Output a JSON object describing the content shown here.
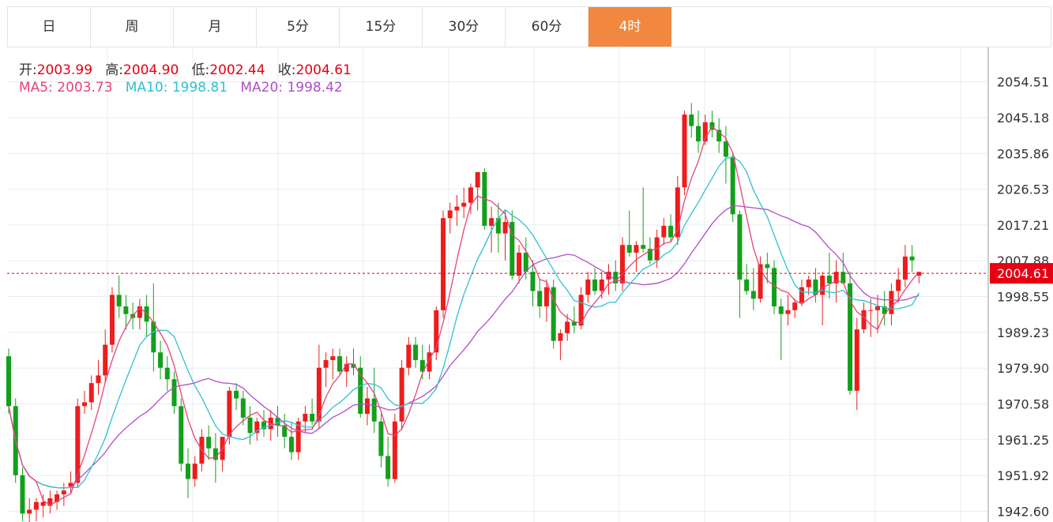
{
  "tabs": [
    {
      "label": "日",
      "active": false
    },
    {
      "label": "周",
      "active": false
    },
    {
      "label": "月",
      "active": false
    },
    {
      "label": "5分",
      "active": false
    },
    {
      "label": "15分",
      "active": false
    },
    {
      "label": "30分",
      "active": false
    },
    {
      "label": "60分",
      "active": false
    },
    {
      "label": "4时",
      "active": true
    }
  ],
  "ohlc_info": {
    "open_label": "开:",
    "open": "2003.99",
    "high_label": "高:",
    "high": "2004.90",
    "low_label": "低:",
    "low": "2002.44",
    "close_label": "收:",
    "close": "2004.61"
  },
  "ma_info": {
    "ma5_label": "MA5:",
    "ma5": "2003.73",
    "ma5_color": "#e8437a",
    "ma10_label": "MA10:",
    "ma10": "1998.81",
    "ma10_color": "#30c0d0",
    "ma20_label": "MA20:",
    "ma20": "1998.42",
    "ma20_color": "#b04fc6"
  },
  "colors": {
    "up": "#ee1c1c",
    "down": "#12a01a",
    "accent": "#f2873f"
  },
  "chart_data": {
    "type": "candlestick",
    "y_ticks": [
      "2054.51",
      "2045.18",
      "2035.86",
      "2026.53",
      "2017.21",
      "2007.88",
      "1998.55",
      "1989.23",
      "1979.90",
      "1970.58",
      "1961.25",
      "1951.92",
      "1942.60"
    ],
    "ylim": [
      1939.8,
      2063.5
    ],
    "last_price": "2004.61",
    "candles": [
      [
        1983,
        1985,
        1968,
        1970
      ],
      [
        1970,
        1972,
        1950,
        1952
      ],
      [
        1952,
        1954,
        1940,
        1942
      ],
      [
        1942,
        1946,
        1939,
        1943
      ],
      [
        1943,
        1946,
        1940,
        1945
      ],
      [
        1944,
        1947,
        1941,
        1945
      ],
      [
        1944,
        1948,
        1942,
        1946
      ],
      [
        1945,
        1948,
        1943,
        1947
      ],
      [
        1947,
        1950,
        1944,
        1948
      ],
      [
        1949,
        1953,
        1947,
        1950
      ],
      [
        1950,
        1972,
        1949,
        1970
      ],
      [
        1970,
        1974,
        1968,
        1971
      ],
      [
        1971,
        1978,
        1969,
        1976
      ],
      [
        1976,
        1982,
        1973,
        1978
      ],
      [
        1978,
        1990,
        1976,
        1986
      ],
      [
        1986,
        2001,
        1984,
        1999
      ],
      [
        1999,
        2004,
        1993,
        1996
      ],
      [
        1996,
        1999,
        1990,
        1994
      ],
      [
        1994,
        1997,
        1990,
        1993
      ],
      [
        1993,
        1998,
        1990,
        1996
      ],
      [
        1996,
        1999,
        1988,
        1992
      ],
      [
        1992,
        2002,
        1979,
        1984
      ],
      [
        1984,
        1987,
        1977,
        1980
      ],
      [
        1980,
        1983,
        1974,
        1977
      ],
      [
        1977,
        1979,
        1968,
        1970
      ],
      [
        1970,
        1972,
        1953,
        1955
      ],
      [
        1955,
        1959,
        1946,
        1951
      ],
      [
        1951,
        1957,
        1949,
        1955
      ],
      [
        1955,
        1964,
        1953,
        1962
      ],
      [
        1962,
        1965,
        1956,
        1959
      ],
      [
        1959,
        1963,
        1950,
        1956
      ],
      [
        1956,
        1962,
        1953,
        1962
      ],
      [
        1962,
        1975,
        1960,
        1974
      ],
      [
        1974,
        1976,
        1969,
        1972
      ],
      [
        1972,
        1974,
        1965,
        1967
      ],
      [
        1967,
        1970,
        1960,
        1963
      ],
      [
        1963,
        1967,
        1961,
        1966
      ],
      [
        1966,
        1969,
        1962,
        1964
      ],
      [
        1964,
        1969,
        1961,
        1967
      ],
      [
        1967,
        1970,
        1962,
        1965
      ],
      [
        1965,
        1968,
        1959,
        1962
      ],
      [
        1962,
        1966,
        1956,
        1958
      ],
      [
        1958,
        1967,
        1956,
        1966
      ],
      [
        1966,
        1970,
        1963,
        1968
      ],
      [
        1968,
        1972,
        1965,
        1966
      ],
      [
        1966,
        1986,
        1964,
        1980
      ],
      [
        1980,
        1984,
        1975,
        1982
      ],
      [
        1982,
        1985,
        1977,
        1983
      ],
      [
        1983,
        1985,
        1978,
        1979
      ],
      [
        1979,
        1983,
        1975,
        1981
      ],
      [
        1981,
        1985,
        1978,
        1980
      ],
      [
        1980,
        1983,
        1967,
        1968
      ],
      [
        1968,
        1975,
        1965,
        1972
      ],
      [
        1972,
        1980,
        1963,
        1966
      ],
      [
        1966,
        1968,
        1954,
        1957
      ],
      [
        1957,
        1962,
        1949,
        1951
      ],
      [
        1951,
        1968,
        1950,
        1966
      ],
      [
        1966,
        1982,
        1964,
        1980
      ],
      [
        1980,
        1988,
        1978,
        1986
      ],
      [
        1986,
        1988,
        1980,
        1982
      ],
      [
        1982,
        1986,
        1977,
        1979
      ],
      [
        1979,
        1986,
        1977,
        1984
      ],
      [
        1984,
        1996,
        1982,
        1995
      ],
      [
        1995,
        2021,
        1993,
        2019
      ],
      [
        2019,
        2023,
        2015,
        2021
      ],
      [
        2021,
        2025,
        2017,
        2022
      ],
      [
        2022,
        2027,
        2019,
        2023
      ],
      [
        2023,
        2028,
        2020,
        2027
      ],
      [
        2027,
        2031,
        2021,
        2031
      ],
      [
        2031,
        2032,
        2016,
        2017
      ],
      [
        2017,
        2022,
        2010,
        2019
      ],
      [
        2019,
        2023,
        2010,
        2015
      ],
      [
        2015,
        2021,
        2008,
        2018
      ],
      [
        2018,
        2021,
        2003,
        2004
      ],
      [
        2004,
        2012,
        2002,
        2010
      ],
      [
        2010,
        2014,
        2003,
        2005
      ],
      [
        2005,
        2008,
        1996,
        2000
      ],
      [
        2000,
        2003,
        1993,
        1996
      ],
      [
        1996,
        2003,
        1992,
        2001
      ],
      [
        2001,
        2003,
        1985,
        1987
      ],
      [
        1987,
        1990,
        1982,
        1989
      ],
      [
        1989,
        1994,
        1987,
        1992
      ],
      [
        1992,
        1996,
        1989,
        1991
      ],
      [
        1991,
        2001,
        1990,
        1999
      ],
      [
        1999,
        2005,
        1997,
        2003
      ],
      [
        2003,
        2006,
        1999,
        2000
      ],
      [
        2000,
        2005,
        1998,
        2003
      ],
      [
        2003,
        2007,
        1999,
        2005
      ],
      [
        2005,
        2008,
        2000,
        2002
      ],
      [
        2002,
        2014,
        2000,
        2012
      ],
      [
        2012,
        2021,
        2009,
        2010
      ],
      [
        2010,
        2013,
        2005,
        2012
      ],
      [
        2012,
        2027,
        2010,
        2011
      ],
      [
        2011,
        2014,
        2007,
        2008
      ],
      [
        2008,
        2016,
        2006,
        2014
      ],
      [
        2014,
        2019,
        2012,
        2017
      ],
      [
        2017,
        2020,
        2013,
        2014
      ],
      [
        2014,
        2030,
        2012,
        2027
      ],
      [
        2027,
        2047,
        2025,
        2046
      ],
      [
        2046,
        2049,
        2040,
        2043
      ],
      [
        2043,
        2047,
        2036,
        2039
      ],
      [
        2039,
        2046,
        2038,
        2044
      ],
      [
        2044,
        2047,
        2040,
        2042
      ],
      [
        2042,
        2045,
        2036,
        2039
      ],
      [
        2039,
        2043,
        2028,
        2035
      ],
      [
        2035,
        2036,
        2018,
        2020
      ],
      [
        2020,
        2021,
        1993,
        2003
      ],
      [
        2003,
        2007,
        1999,
        2000
      ],
      [
        2000,
        2006,
        1995,
        1998
      ],
      [
        1998,
        2009,
        1997,
        2007
      ],
      [
        2007,
        2010,
        2002,
        2006
      ],
      [
        2006,
        2008,
        1994,
        1996
      ],
      [
        1996,
        1998,
        1982,
        1994
      ],
      [
        1994,
        1999,
        1991,
        1995
      ],
      [
        1995,
        1998,
        1993,
        1997
      ],
      [
        1997,
        2003,
        1996,
        2001
      ],
      [
        2001,
        2004,
        1999,
        2003
      ],
      [
        2003,
        2006,
        1997,
        1999
      ],
      [
        1999,
        2005,
        1991,
        2004
      ],
      [
        2004,
        2010,
        1998,
        2002
      ],
      [
        2002,
        2008,
        1997,
        2005
      ],
      [
        2005,
        2010,
        2002,
        2002
      ],
      [
        2002,
        2005,
        1973,
        1974
      ],
      [
        1974,
        1993,
        1969,
        1990
      ],
      [
        1990,
        1997,
        1989,
        1995
      ],
      [
        1995,
        1998,
        1988,
        1995
      ],
      [
        1995,
        1999,
        1989,
        1996
      ],
      [
        1996,
        2000,
        1991,
        1994
      ],
      [
        1994,
        2002,
        1991,
        2000
      ],
      [
        2000,
        2006,
        1997,
        2003
      ],
      [
        2003,
        2012,
        2001,
        2009
      ],
      [
        2009,
        2012,
        2005,
        2008
      ],
      [
        2004,
        2005,
        2002,
        2005
      ]
    ]
  }
}
